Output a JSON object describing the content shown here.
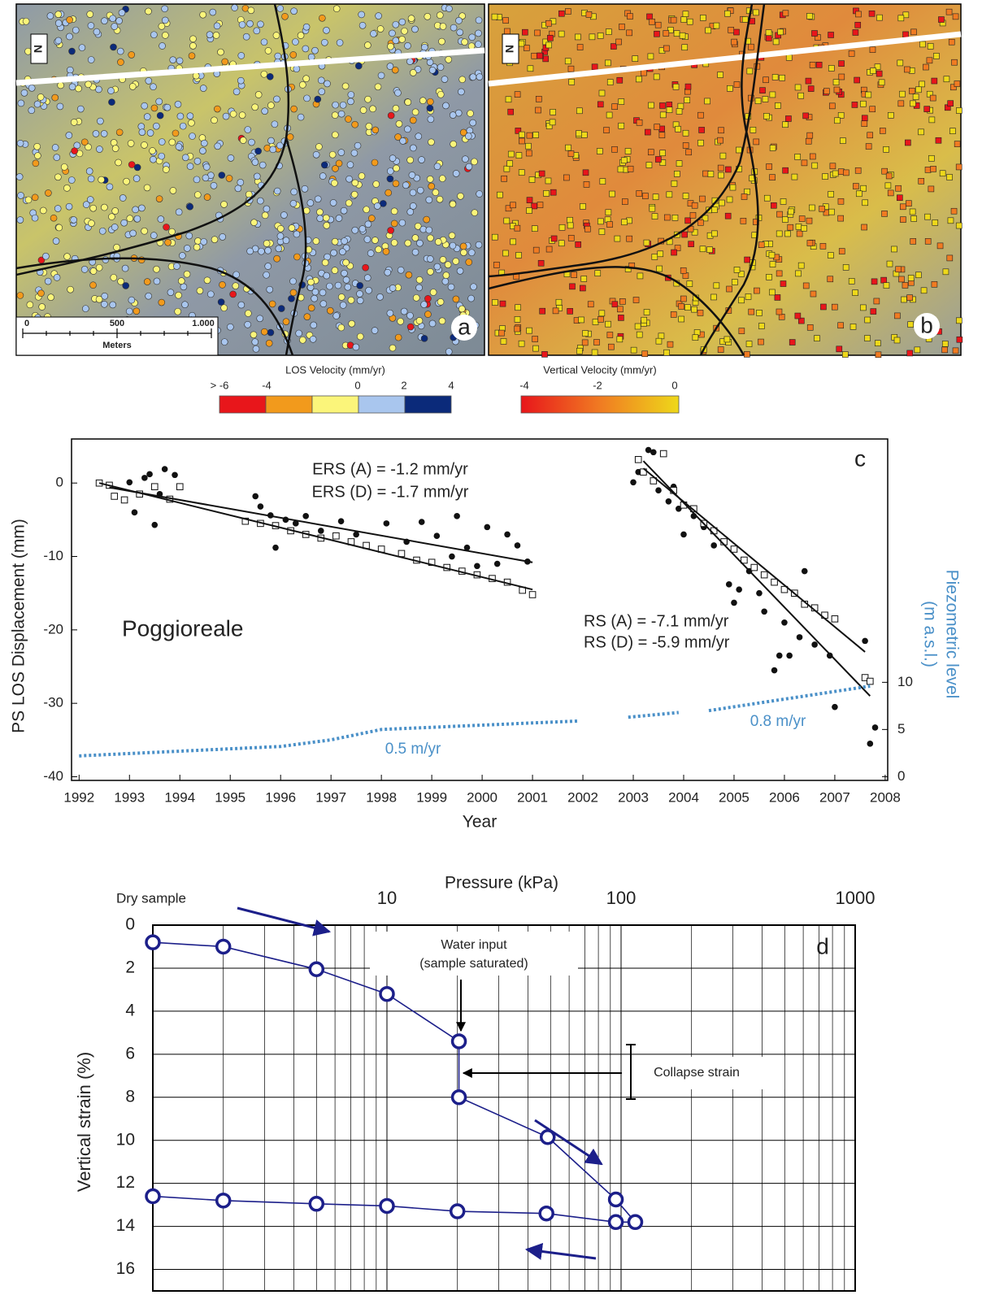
{
  "maps": [
    {
      "label": "a",
      "scale": [
        "0",
        "500",
        "1.000"
      ],
      "scale_unit": "Meters",
      "north": "N"
    },
    {
      "label": "b",
      "north": "N"
    }
  ],
  "colorbars": [
    {
      "title": "LOS Velocity (mm/yr)",
      "labels": [
        "> -6",
        "-4",
        "0",
        "2",
        "4"
      ],
      "colors": [
        "#e8161b",
        "#f29a1c",
        "#fbf57a",
        "#a9c6ee",
        "#0b2a7a"
      ]
    },
    {
      "title": "Vertical Velocity (mm/yr)",
      "labels": [
        "-4",
        "-2",
        "0"
      ],
      "colors": [
        "#e8161b",
        "#f07b22",
        "#eed81a"
      ]
    }
  ],
  "chart_data": [
    {
      "type": "scatter",
      "panel_label": "c",
      "xlabel": "Year",
      "ylabel": "PS LOS Displacement (mm)",
      "y2label": [
        "Piezometric level",
        "(m a.s.l.)"
      ],
      "y2color": "#4a90c8",
      "xlim": [
        1991.85,
        2008.05
      ],
      "ylim": [
        -40.5,
        6
      ],
      "y2lim": [
        -0.4,
        35.8
      ],
      "xticks": [
        1992,
        1993,
        1994,
        1995,
        1996,
        1997,
        1998,
        1999,
        2000,
        2001,
        2002,
        2003,
        2004,
        2005,
        2006,
        2007,
        2008
      ],
      "yticks": [
        -40,
        -30,
        -20,
        -10,
        0
      ],
      "y2ticks": [
        0,
        5,
        10
      ],
      "annotations": [
        "ERS (A) = -1.2 mm/yr",
        "ERS (D) = -1.7 mm/yr",
        "Poggioreale",
        "RS (A) = -7.1 mm/yr",
        "RS (D) = -5.9 mm/yr",
        "0.5 m/yr",
        "0.8 m/yr"
      ],
      "series": [
        {
          "marker": "filled-circle",
          "color": "#111111",
          "x": [
            1993.0,
            1993.1,
            1993.3,
            1993.4,
            1993.5,
            1993.6,
            1993.7,
            1993.9,
            1995.5,
            1995.6,
            1995.8,
            1995.9,
            1996.1,
            1996.3,
            1996.5,
            1996.8,
            1997.2,
            1997.5,
            1998.1,
            1998.5,
            1998.8,
            1999.1,
            1999.4,
            1999.5,
            1999.7,
            1999.9,
            2000.1,
            2000.3,
            2000.5,
            2000.7,
            2000.9
          ],
          "values": [
            0.1,
            -4.0,
            0.7,
            1.2,
            -5.7,
            -1.5,
            1.9,
            1.1,
            -1.8,
            -3.2,
            -4.4,
            -8.8,
            -5.0,
            -5.5,
            -4.5,
            -6.5,
            -5.2,
            -7.0,
            -5.5,
            -8.0,
            -5.3,
            -7.2,
            -10.0,
            -4.5,
            -8.8,
            -11.3,
            -6.0,
            -11.0,
            -7.0,
            -8.5,
            -10.7
          ]
        },
        {
          "marker": "open-square",
          "color": "#111111",
          "x": [
            1992.4,
            1992.6,
            1992.7,
            1992.9,
            1993.2,
            1993.5,
            1993.8,
            1994.0,
            1995.3,
            1995.6,
            1995.9,
            1996.2,
            1996.5,
            1996.8,
            1997.1,
            1997.4,
            1997.7,
            1998.0,
            1998.4,
            1998.7,
            1999.0,
            1999.3,
            1999.6,
            1999.9,
            2000.2,
            2000.5,
            2000.8,
            2001.0
          ],
          "values": [
            0,
            -0.3,
            -1.8,
            -2.3,
            -1.5,
            -0.5,
            -2.2,
            -0.5,
            -5.2,
            -5.5,
            -5.8,
            -6.5,
            -7.0,
            -7.5,
            -7.2,
            -8.0,
            -8.5,
            -9.0,
            -9.6,
            -10.5,
            -10.8,
            -11.5,
            -12.0,
            -12.5,
            -13.0,
            -13.5,
            -14.6,
            -15.2
          ]
        },
        {
          "marker": "filled-circle",
          "color": "#111111",
          "x": [
            2003.0,
            2003.1,
            2003.3,
            2003.4,
            2003.5,
            2003.7,
            2003.8,
            2003.9,
            2004.0,
            2004.2,
            2004.4,
            2004.6,
            2004.9,
            2005.0,
            2005.1,
            2005.3,
            2005.5,
            2005.6,
            2005.8,
            2005.9,
            2006.0,
            2006.1,
            2006.3,
            2006.4,
            2006.6,
            2006.9,
            2007.0,
            2007.6,
            2007.7,
            2007.8
          ],
          "values": [
            0.1,
            1.5,
            4.5,
            4.2,
            -1.0,
            -2.5,
            -0.5,
            -3.5,
            -7.0,
            -4.5,
            -6.0,
            -8.5,
            -13.8,
            -16.3,
            -14.5,
            -12.0,
            -15.0,
            -17.5,
            -25.5,
            -23.5,
            -19.0,
            -23.5,
            -21.0,
            -12.0,
            -22.0,
            -23.5,
            -30.5,
            -21.5,
            -35.5,
            -33.3
          ]
        },
        {
          "marker": "open-square",
          "color": "#111111",
          "x": [
            2003.1,
            2003.2,
            2003.4,
            2003.6,
            2003.8,
            2004.0,
            2004.2,
            2004.4,
            2004.6,
            2004.8,
            2005.0,
            2005.2,
            2005.4,
            2005.6,
            2005.8,
            2006.0,
            2006.2,
            2006.4,
            2006.6,
            2006.8,
            2007.0,
            2007.6,
            2007.7
          ],
          "values": [
            3.2,
            1.5,
            0.3,
            4.0,
            -1.0,
            -3.0,
            -3.5,
            -5.5,
            -6.5,
            -8.0,
            -9.0,
            -10.5,
            -11.5,
            -12.5,
            -13.5,
            -14.5,
            -15.0,
            -16.5,
            -17.0,
            -18.0,
            -18.5,
            -26.5,
            -27.0
          ]
        },
        {
          "marker": "line",
          "color": "#111111",
          "x": [
            1992.6,
            2001.0
          ],
          "values": [
            -0.6,
            -10.8
          ]
        },
        {
          "marker": "line",
          "color": "#111111",
          "x": [
            1992.4,
            2001.0
          ],
          "values": [
            0,
            -14.5
          ]
        },
        {
          "marker": "line",
          "color": "#111111",
          "x": [
            2003.2,
            2007.7
          ],
          "values": [
            3,
            -29
          ]
        },
        {
          "marker": "line",
          "color": "#111111",
          "x": [
            2003.2,
            2007.6
          ],
          "values": [
            2,
            -23
          ]
        },
        {
          "marker": "dotted-line",
          "color": "#4a90c8",
          "axis": "y2",
          "x": [
            1992.0,
            1996.0,
            1997.0,
            1998.0,
            2001.9,
            2002.5,
            2002.9,
            2003.9,
            2004.2,
            2004.5,
            2007.7
          ],
          "values": [
            2.2,
            3.2,
            3.9,
            5.0,
            5.9,
            null,
            6.3,
            6.8,
            null,
            7.0,
            9.6
          ]
        }
      ]
    },
    {
      "type": "line",
      "panel_label": "d",
      "xlabel": "Pressure (kPa)",
      "ylabel": "Vertical strain (%)",
      "log_x": true,
      "y_inverted": true,
      "grid": true,
      "xlim": [
        1,
        1000
      ],
      "ylim": [
        0,
        17
      ],
      "xticks": [
        {
          "value": 1,
          "label": "Dry sample"
        },
        10,
        100,
        1000
      ],
      "yticks": [
        0,
        2,
        4,
        6,
        8,
        10,
        12,
        14,
        16
      ],
      "annotations": [
        "Water input",
        "(sample saturated)",
        "Collapse strain"
      ],
      "series": [
        {
          "color": "#1c1f8a",
          "marker": "open-circle",
          "x": [
            1,
            2,
            5,
            10,
            20.3,
            20.3,
            48.6,
            95,
            115,
            95,
            48,
            20,
            10,
            5,
            2,
            1
          ],
          "values": [
            0.8,
            1.0,
            2.05,
            3.2,
            5.4,
            8.0,
            9.85,
            12.75,
            13.8,
            13.8,
            13.4,
            13.3,
            13.05,
            12.95,
            12.8,
            12.6
          ]
        }
      ]
    }
  ]
}
